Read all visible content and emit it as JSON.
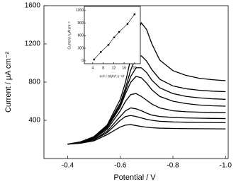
{
  "chart_data": [
    {
      "type": "line",
      "x_label": "Potential / V",
      "y_label": "Current / μA cm⁻²",
      "x": [
        -0.4,
        -0.45,
        -0.5,
        -0.55,
        -0.6,
        -0.62,
        -0.64,
        -0.66,
        -0.68,
        -0.7,
        -0.72,
        -0.75,
        -0.8,
        -0.85,
        -0.9,
        -0.95,
        -1.0
      ],
      "series": [
        {
          "color": "#000000",
          "values": [
            150,
            175,
            230,
            350,
            620,
            800,
            1050,
            1300,
            1420,
            1350,
            1200,
            1030,
            920,
            870,
            840,
            825,
            815
          ]
        },
        {
          "color": "#000000",
          "values": [
            150,
            175,
            225,
            340,
            580,
            740,
            930,
            1060,
            1075,
            1020,
            930,
            830,
            760,
            730,
            715,
            705,
            700
          ]
        },
        {
          "color": "#000000",
          "values": [
            150,
            172,
            220,
            330,
            560,
            710,
            860,
            950,
            950,
            900,
            820,
            740,
            680,
            650,
            635,
            625,
            620
          ]
        },
        {
          "color": "#000000",
          "values": [
            150,
            170,
            215,
            320,
            540,
            680,
            800,
            860,
            845,
            790,
            720,
            650,
            600,
            575,
            560,
            552,
            548
          ]
        },
        {
          "color": "#000000",
          "values": [
            150,
            168,
            210,
            305,
            500,
            600,
            670,
            680,
            650,
            610,
            570,
            530,
            500,
            490,
            485,
            482,
            480
          ]
        },
        {
          "color": "#000000",
          "values": [
            150,
            165,
            200,
            285,
            440,
            500,
            530,
            520,
            500,
            475,
            455,
            440,
            430,
            425,
            422,
            420,
            418
          ]
        },
        {
          "color": "#000000",
          "values": [
            150,
            162,
            195,
            270,
            400,
            440,
            450,
            440,
            425,
            410,
            400,
            390,
            383,
            380,
            378,
            376,
            375
          ]
        },
        {
          "color": "#000000",
          "values": [
            150,
            160,
            185,
            250,
            330,
            350,
            355,
            345,
            335,
            328,
            322,
            318,
            315,
            313,
            312,
            311,
            310
          ]
        }
      ],
      "xlim": [
        -0.31,
        -1.01
      ],
      "xticks": [
        -0.4,
        -0.6,
        -0.8,
        {
          "value": -1,
          "label": "-1.0"
        }
      ],
      "ylim": [
        0,
        1600
      ],
      "yticks": [
        400,
        800,
        1200,
        1600
      ]
    },
    {
      "type": "line",
      "marker": "square",
      "x_label": "v¹/² / mV¹/² s⁻¹/²",
      "y_label": "Current / μA cm⁻²",
      "x": [
        4.5,
        7.1,
        10,
        12.2,
        14.1,
        17.3,
        20
      ],
      "series": [
        {
          "color": "#000000",
          "values": [
            30,
            210,
            380,
            560,
            690,
            880,
            1110
          ]
        }
      ],
      "xlim": [
        0.8,
        22.2
      ],
      "xticks": [
        4,
        8,
        12,
        16,
        20
      ],
      "ylim": [
        -70,
        1300
      ],
      "yticks": [
        0,
        300,
        600,
        900,
        1200
      ]
    }
  ]
}
